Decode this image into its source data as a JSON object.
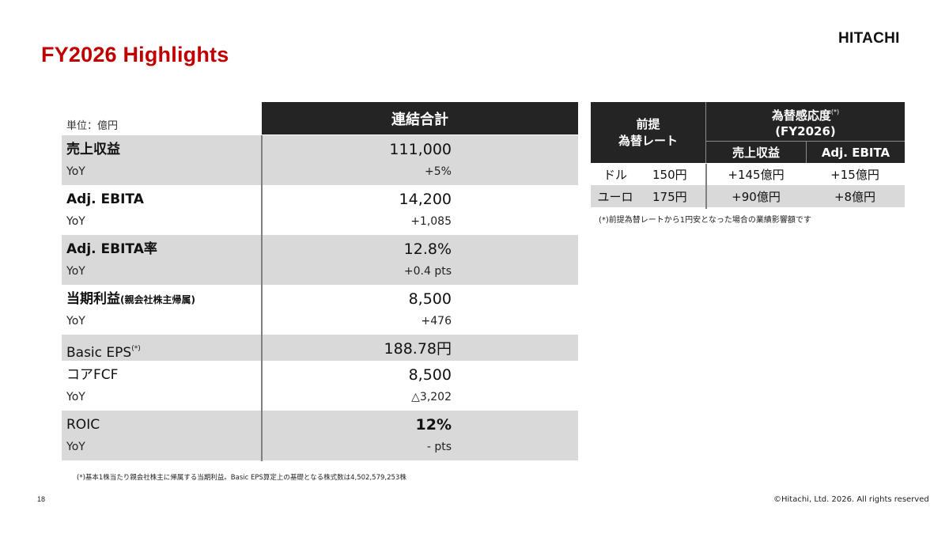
{
  "header": {
    "title": "FY2026 Highlights",
    "logo": "HITACHI"
  },
  "main_table": {
    "unit_label": "単位：億円",
    "column_header": "連結合計",
    "rows": [
      {
        "label": "売上収益",
        "label_suffix": "",
        "value": "111,000",
        "yoy_label": "YoY",
        "yoy": "+5%",
        "shaded": true
      },
      {
        "label": "Adj. EBITA",
        "label_suffix": "",
        "value": "14,200",
        "yoy_label": "YoY",
        "yoy": "+1,085",
        "shaded": false
      },
      {
        "label": "Adj. EBITA率",
        "label_suffix": "",
        "value": "12.8%",
        "yoy_label": "YoY",
        "yoy": "+0.4 pts",
        "shaded": true
      },
      {
        "label": "当期利益",
        "label_suffix": "(親会社株主帰属)",
        "value": "8,500",
        "yoy_label": "YoY",
        "yoy": "+476",
        "shaded": false
      },
      {
        "label": "Basic EPS",
        "label_sup": "(*)",
        "value": "188.78円",
        "shaded": true
      },
      {
        "label": "コアFCF",
        "label_suffix": "",
        "value": "8,500",
        "yoy_label": "YoY",
        "yoy": "△3,202",
        "shaded": false
      },
      {
        "label": "ROIC",
        "label_suffix": "",
        "value": "12%",
        "yoy_label": "YoY",
        "yoy": "- pts",
        "shaded": true
      }
    ],
    "footnote": "(*)基本1株当たり親会社株主に帰属する当期利益。Basic EPS算定上の基礎となる株式数は4,502,579,253株"
  },
  "fx_table": {
    "col1_header_line1": "前提",
    "col1_header_line2": "為替レート",
    "group_header_line1": "為替感応度",
    "group_header_sup": "(*)",
    "group_header_line2": "(FY2026)",
    "sub_header_sales": "売上収益",
    "sub_header_ebita": "Adj. EBITA",
    "rows": [
      {
        "currency": "ドル",
        "rate": "150円",
        "sales": "+145億円",
        "ebita": "+15億円",
        "shaded": false
      },
      {
        "currency": "ユーロ",
        "rate": "175円",
        "sales": "+90億円",
        "ebita": "+8億円",
        "shaded": true
      }
    ],
    "footnote": "(*)前提為替レートから1円安となった場合の業績影響額です"
  },
  "footer": {
    "page_number": "18",
    "copyright": "©Hitachi, Ltd. 2026. All rights reserved"
  },
  "colors": {
    "title_red": "#c00000",
    "header_dark": "#242424",
    "row_shade": "#d9d9d9",
    "divider": "#7f7f7f"
  }
}
